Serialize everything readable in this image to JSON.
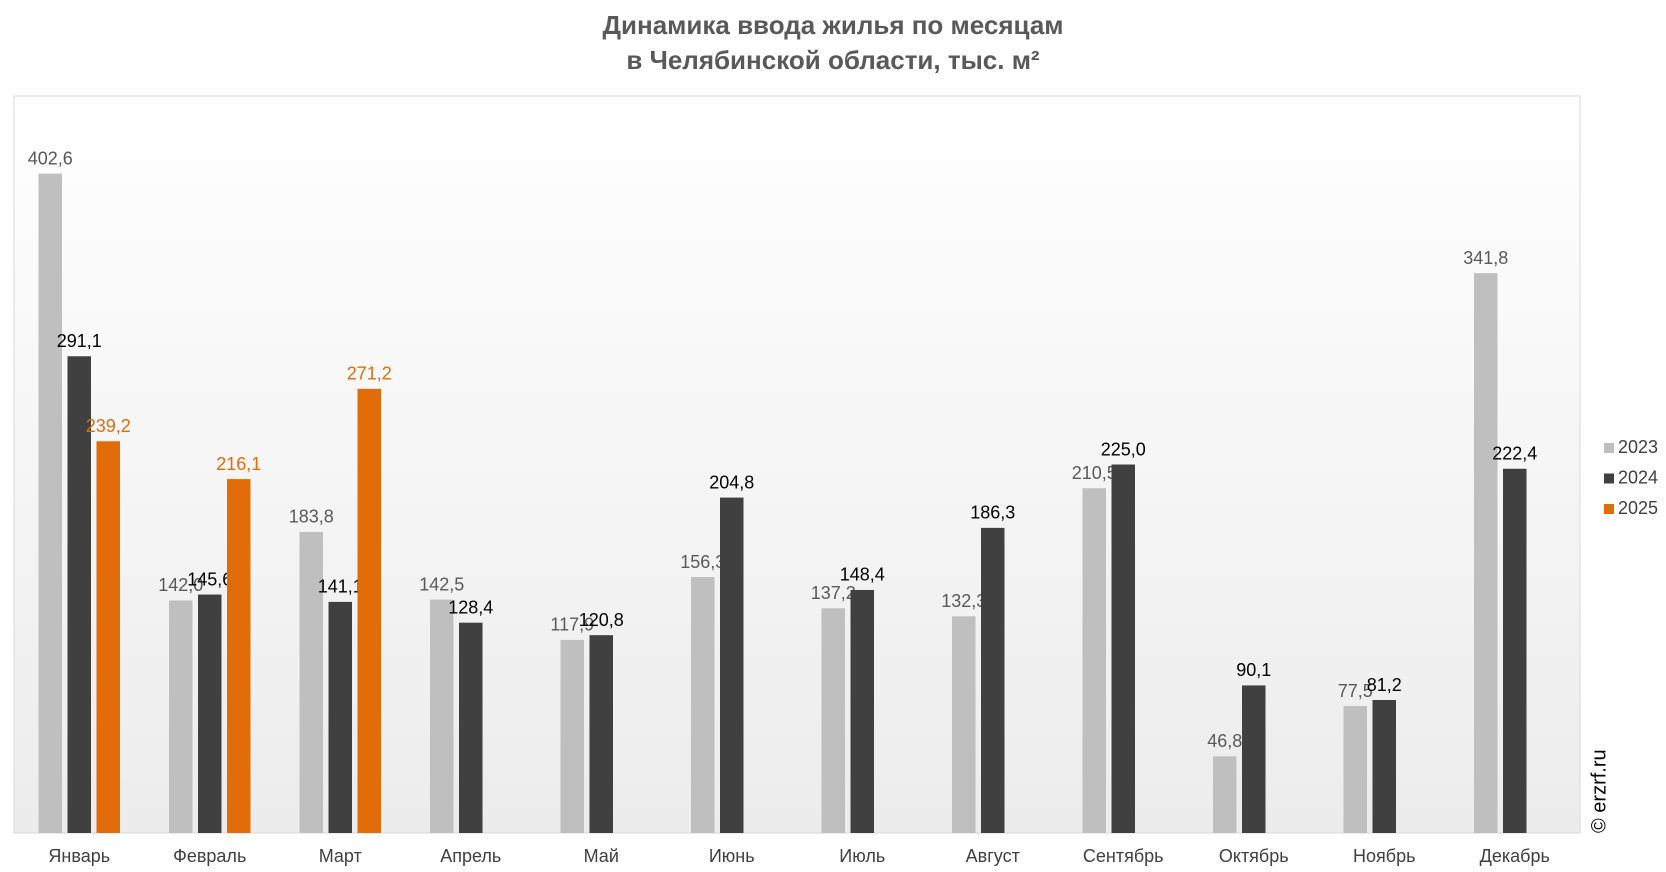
{
  "chart_data": {
    "type": "bar",
    "title": [
      "Динамика ввода жилья по месяцам",
      "в Челябинской области, тыс. м²"
    ],
    "categories": [
      "Январь",
      "Февраль",
      "Март",
      "Апрель",
      "Май",
      "Июнь",
      "Июль",
      "Август",
      "Сентябрь",
      "Октябрь",
      "Ноябрь",
      "Декабрь"
    ],
    "series": [
      {
        "name": "2023",
        "color": "#bfbfbf",
        "label_color": "#595959",
        "values": [
          402.6,
          142.0,
          183.8,
          142.5,
          117.9,
          156.3,
          137.2,
          132.3,
          210.5,
          46.8,
          77.5,
          341.8
        ],
        "value_labels": [
          "402,6",
          "142,0",
          "183,8",
          "142,5",
          "117,9",
          "156,3",
          "137,2",
          "132,3",
          "210,5",
          "46,8",
          "77,5",
          "341,8"
        ]
      },
      {
        "name": "2024",
        "color": "#404040",
        "label_color": "#000000",
        "values": [
          291.1,
          145.6,
          141.1,
          128.4,
          120.8,
          204.8,
          148.4,
          186.3,
          225.0,
          90.1,
          81.2,
          222.4
        ],
        "value_labels": [
          "291,1",
          "145,6",
          "141,1",
          "128,4",
          "120,8",
          "204,8",
          "148,4",
          "186,3",
          "225,0",
          "90,1",
          "81,2",
          "222,4"
        ]
      },
      {
        "name": "2025",
        "color": "#e36c0a",
        "label_color": "#e36c0a",
        "values": [
          239.2,
          216.1,
          271.2,
          null,
          null,
          null,
          null,
          null,
          null,
          null,
          null,
          null
        ],
        "value_labels": [
          "239,2",
          "216,1",
          "271,2",
          null,
          null,
          null,
          null,
          null,
          null,
          null,
          null,
          null
        ]
      }
    ],
    "ylim": [
      0,
      450
    ],
    "legend": "right",
    "watermark": "© erzrf.ru"
  }
}
